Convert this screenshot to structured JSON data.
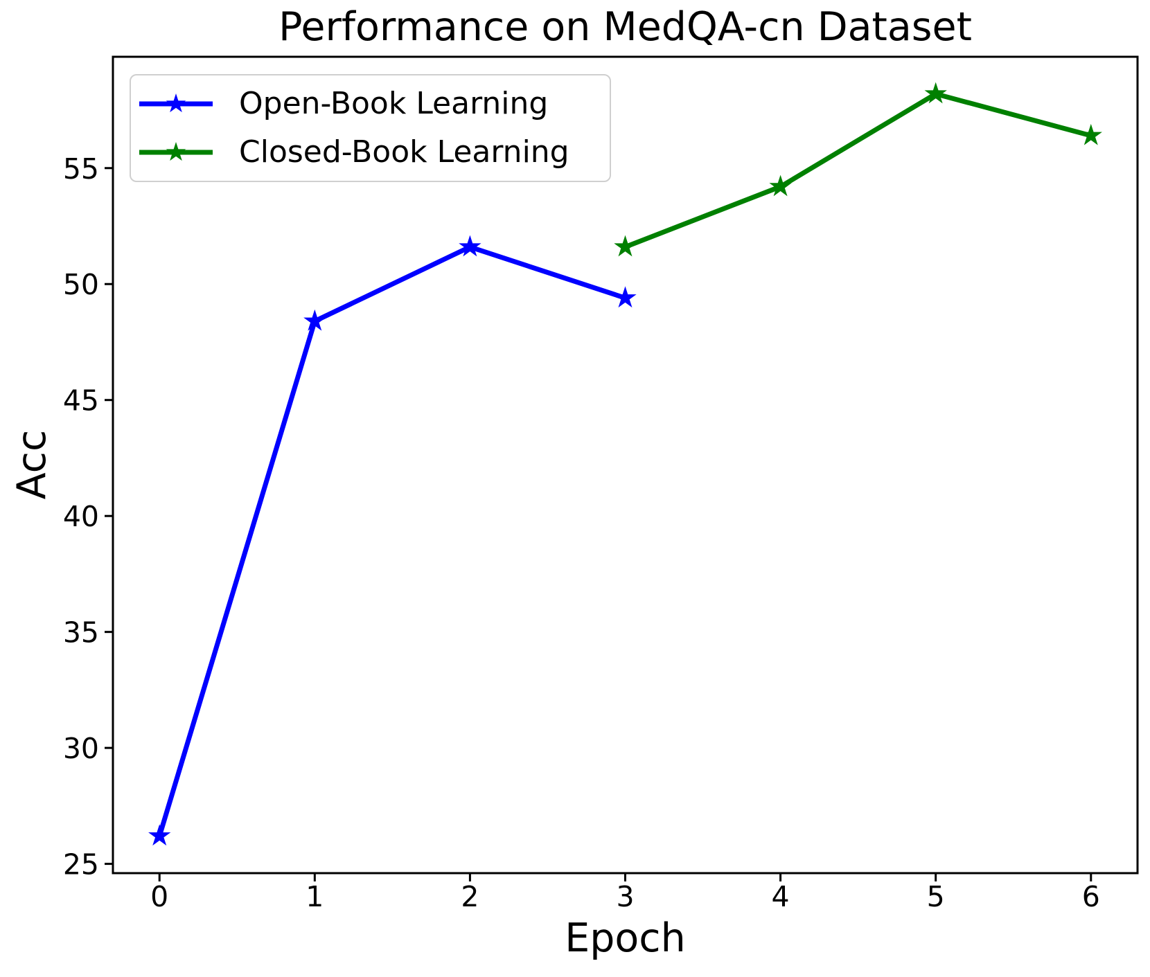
{
  "figure": {
    "title": "Performance on MedQA-cn Dataset",
    "x_axis_label": "Epoch",
    "y_axis_label": "Acc",
    "background": "#ffffff"
  },
  "legend": {
    "position": "upper-left",
    "items": [
      {
        "label": "Open-Book Learning",
        "color": "#0000FF",
        "marker": "star-icon"
      },
      {
        "label": "Closed-Book Learning",
        "color": "#008000",
        "marker": "star-icon"
      }
    ]
  },
  "chart_data": {
    "type": "line",
    "title": "Performance on MedQA-cn Dataset",
    "xlabel": "Epoch",
    "ylabel": "Acc",
    "xlim": [
      -0.3,
      6.3
    ],
    "ylim": [
      24.6,
      59.8
    ],
    "xticks": [
      0,
      1,
      2,
      3,
      4,
      5,
      6
    ],
    "yticks": [
      25,
      30,
      35,
      40,
      45,
      50,
      55
    ],
    "grid": false,
    "legend_position": "upper left",
    "marker": "star",
    "series": [
      {
        "name": "Open-Book Learning",
        "color": "#0000FF",
        "x": [
          0,
          1,
          2,
          3
        ],
        "y": [
          26.2,
          48.4,
          51.6,
          49.4
        ]
      },
      {
        "name": "Closed-Book Learning",
        "color": "#008000",
        "x": [
          3,
          4,
          5,
          6
        ],
        "y": [
          51.6,
          54.2,
          58.2,
          56.4
        ]
      }
    ]
  },
  "colors": {
    "axis": "#000000",
    "tick_text": "#000000",
    "legend_border": "#cfcfcf",
    "background": "#ffffff"
  }
}
